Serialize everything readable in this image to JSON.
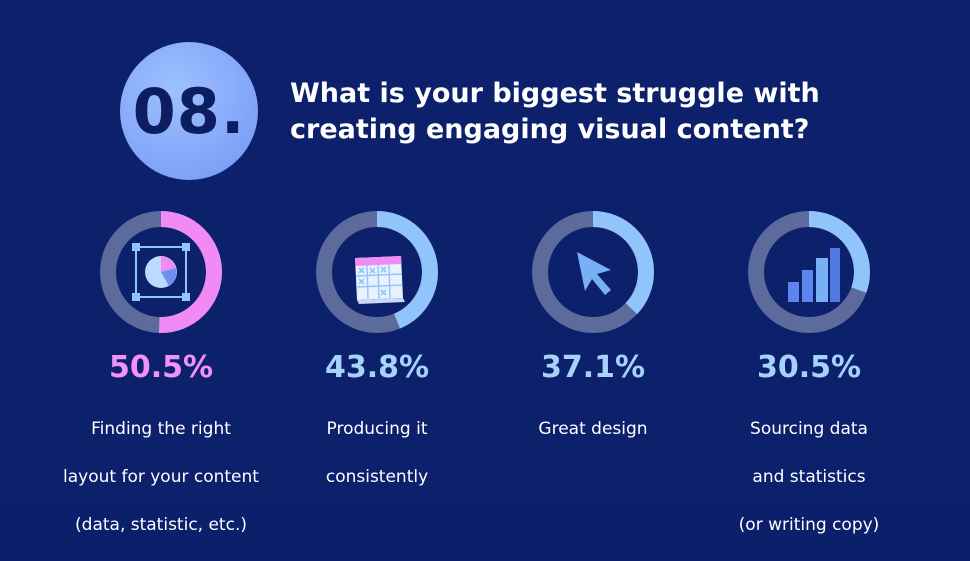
{
  "header": {
    "number": "08.",
    "title_line1": "What is your biggest struggle with",
    "title_line2": "creating engaging visual content?"
  },
  "colors": {
    "background": "#0c206c",
    "ring_track": "#5c6a9c",
    "accent_pink": "#f08bf5",
    "accent_blue": "#90c4fb",
    "percent_pink": "#f291f6",
    "percent_blue": "#a7d2fc"
  },
  "chart_data": {
    "type": "donut",
    "title": "What is your biggest struggle with creating engaging visual content?",
    "items": [
      {
        "label_line1": "Finding the right",
        "label_line2": "layout for your content",
        "label_line3": "(data, statistic, etc.)",
        "value": 50.5,
        "value_label": "50.5%",
        "icon": "layout-chart-icon",
        "color": "#f08bf5"
      },
      {
        "label_line1": "Producing it",
        "label_line2": "consistently",
        "label_line3": "",
        "value": 43.8,
        "value_label": "43.8%",
        "icon": "calendar-icon",
        "color": "#90c4fb"
      },
      {
        "label_line1": "Great design",
        "label_line2": "",
        "label_line3": "",
        "value": 37.1,
        "value_label": "37.1%",
        "icon": "cursor-icon",
        "color": "#90c4fb"
      },
      {
        "label_line1": "Sourcing data",
        "label_line2": "and statistics",
        "label_line3": "(or writing copy)",
        "value": 30.5,
        "value_label": "30.5%",
        "icon": "bar-chart-icon",
        "color": "#90c4fb"
      }
    ]
  }
}
